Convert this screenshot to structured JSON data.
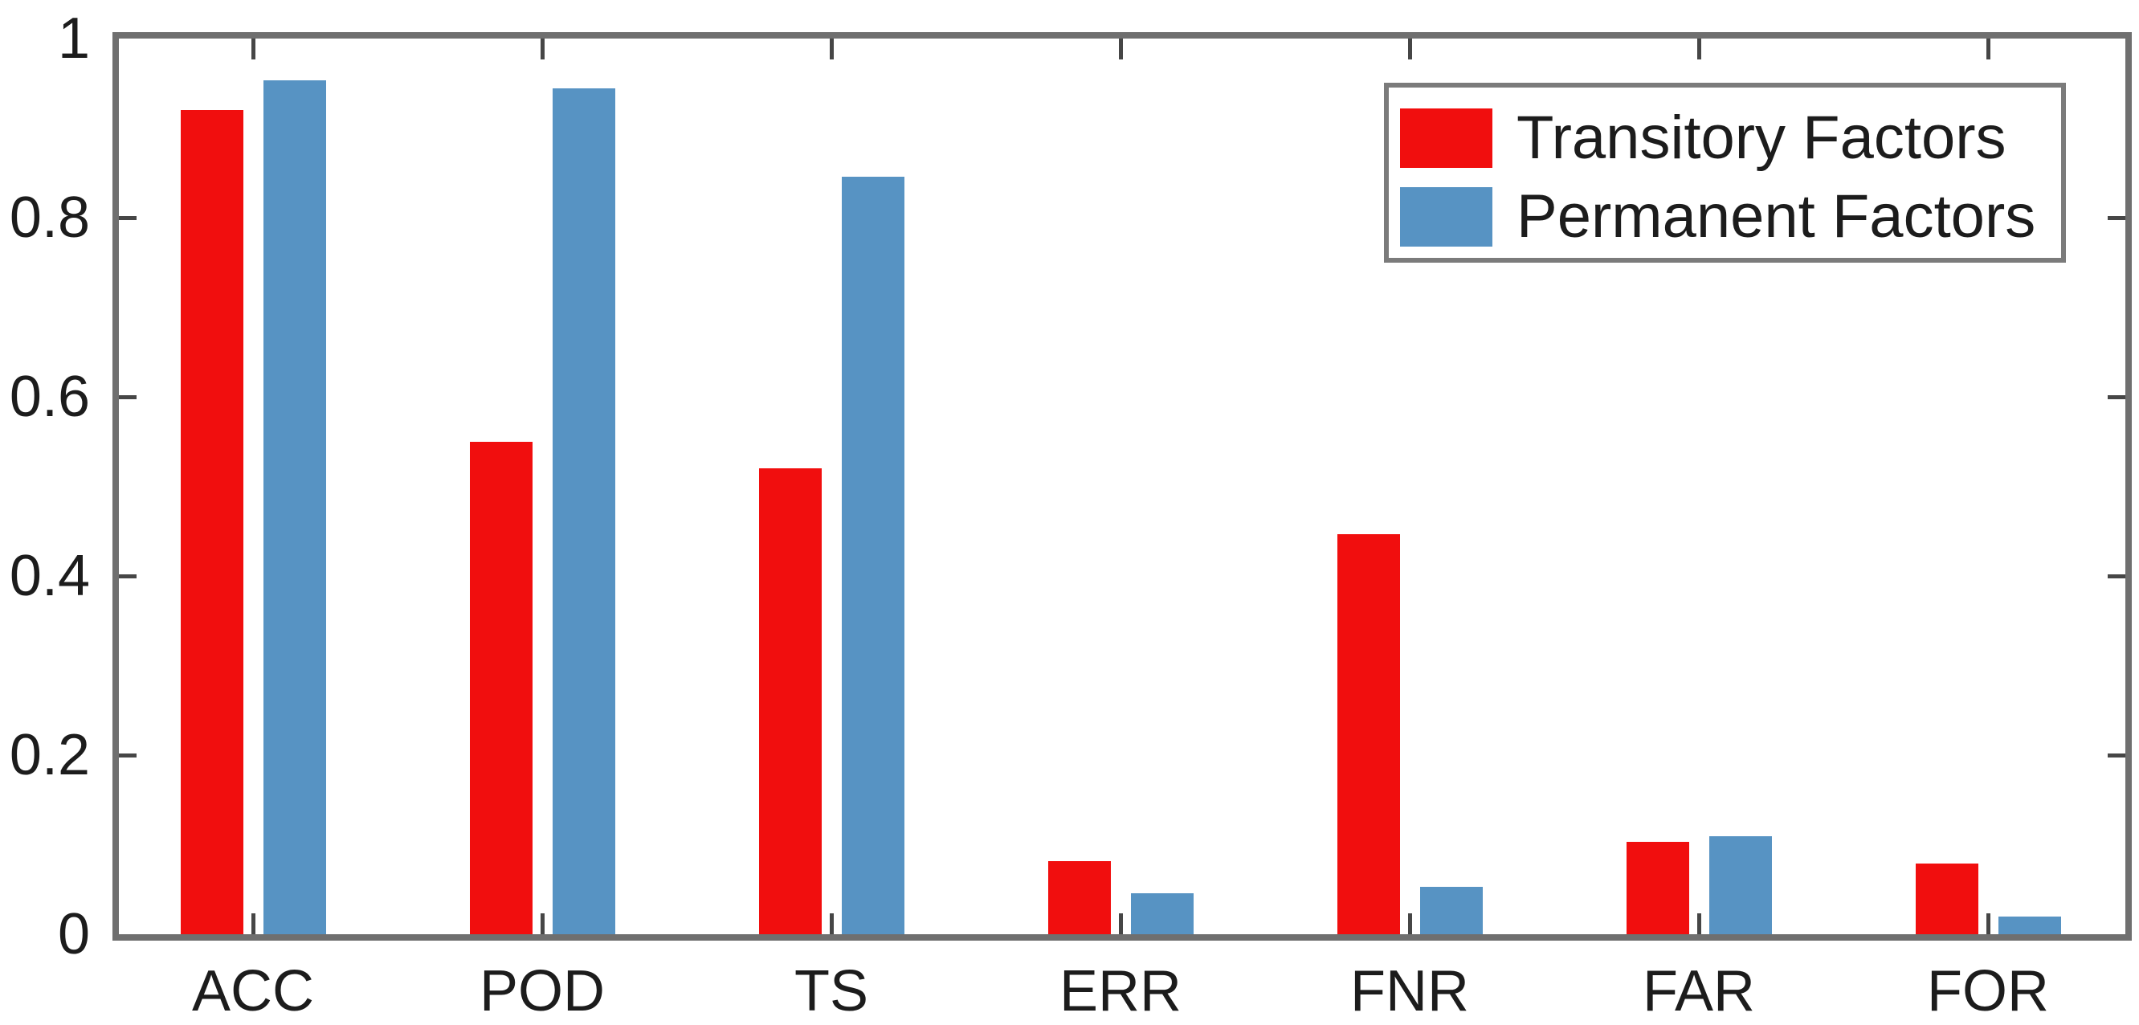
{
  "chart_data": {
    "type": "bar",
    "title": "",
    "xlabel": "",
    "ylabel": "",
    "categories": [
      "ACC",
      "POD",
      "TS",
      "ERR",
      "FNR",
      "FAR",
      "FOR"
    ],
    "series": [
      {
        "name": "Transitory Factors",
        "color": "#f10e0e",
        "values": [
          0.92,
          0.55,
          0.52,
          0.082,
          0.447,
          0.103,
          0.079
        ]
      },
      {
        "name": "Permanent Factors",
        "color": "#5793c3",
        "values": [
          0.953,
          0.944,
          0.846,
          0.046,
          0.053,
          0.109,
          0.02
        ]
      }
    ],
    "ylim": [
      0,
      1
    ],
    "yticks": [
      0,
      0.2,
      0.4,
      0.6,
      0.8,
      1
    ],
    "ytick_labels": [
      "0",
      "0.2",
      "0.4",
      "0.6",
      "0.8",
      "1"
    ],
    "grid": false,
    "legend_position": "upper right",
    "axis_color": "#6f6f6f",
    "tick_color": "#464646",
    "text_color": "#1c1c1c"
  }
}
